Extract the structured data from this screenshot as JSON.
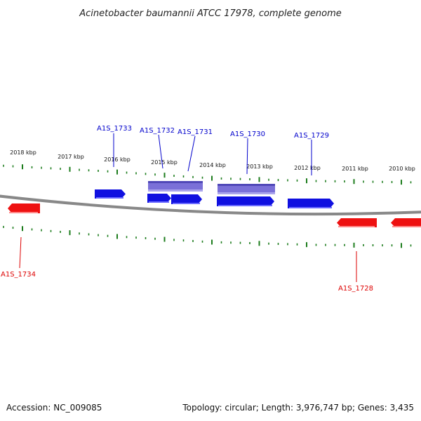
{
  "title": "Acinetobacter baumannii ATCC 17978, complete genome",
  "colors": {
    "forward_gene": "#1010e0",
    "reverse_gene": "#ee1111",
    "feature_box": "#7a70d8",
    "tick": "#1c7c1c",
    "backbone": "#8a8a8a",
    "forward_label": "#0000cc",
    "reverse_label": "#dd0000"
  },
  "kbp_labels": [
    "2018 kbp",
    "2017 kbp",
    "2016 kbp",
    "2015 kbp",
    "2014 kbp",
    "2013 kbp",
    "2012 kbp",
    "2011 kbp",
    "2010 kbp"
  ],
  "forward_genes": [
    "A1S_1733",
    "A1S_1732",
    "A1S_1731",
    "A1S_1730",
    "A1S_1729"
  ],
  "reverse_genes": [
    "A1S_1734",
    "A1S_1728"
  ],
  "footer": {
    "accession": "Accession: NC_009085",
    "stats": "Topology: circular; Length: 3,976,747 bp; Genes: 3,435"
  }
}
